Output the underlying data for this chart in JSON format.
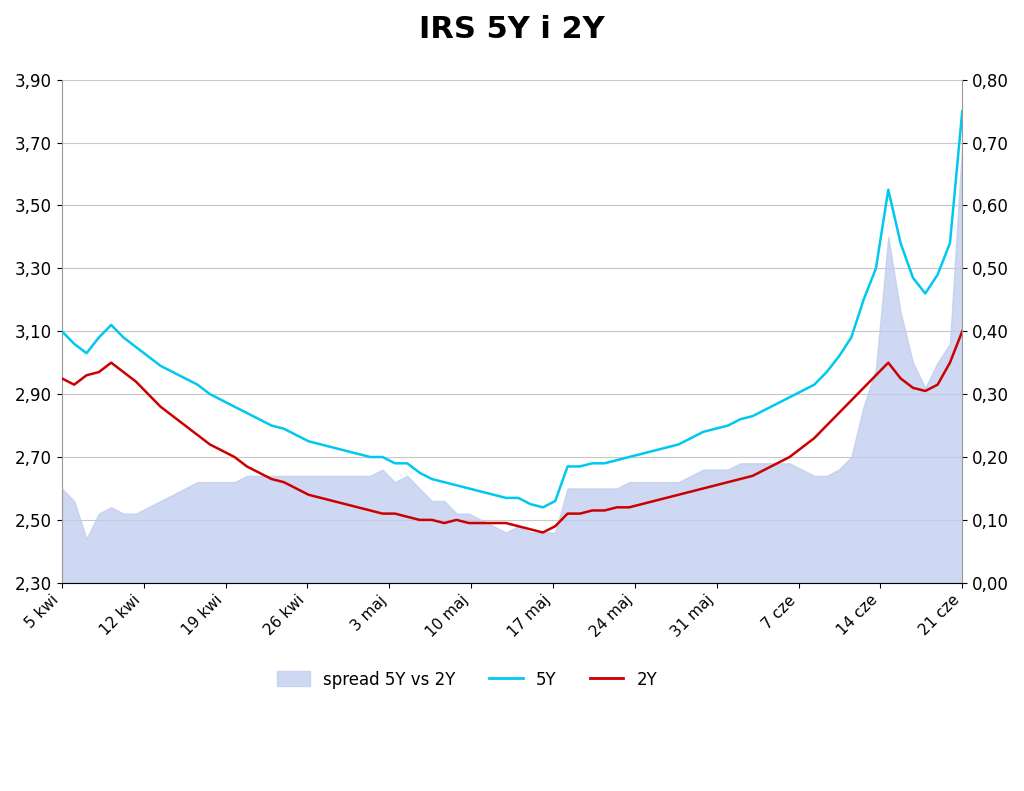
{
  "title": "IRS 5Y i 2Y",
  "x_labels": [
    "5 kwi",
    "12 kwi",
    "19 kwi",
    "26 kwi",
    "3 maj",
    "10 maj",
    "17 maj",
    "24 maj",
    "31 maj",
    "7 cze",
    "14 cze",
    "21 cze"
  ],
  "ylim_left": [
    2.3,
    3.9
  ],
  "ylim_right": [
    0.0,
    0.8
  ],
  "y_ticks_left": [
    2.3,
    2.5,
    2.7,
    2.9,
    3.1,
    3.3,
    3.5,
    3.7,
    3.9
  ],
  "y_ticks_right": [
    0.0,
    0.1,
    0.2,
    0.3,
    0.4,
    0.5,
    0.6,
    0.7,
    0.8
  ],
  "line_5Y_color": "#00C8F0",
  "line_2Y_color": "#CC0000",
  "spread_color": "#C0CCEE",
  "spread_alpha": 0.75,
  "background_color": "#FFFFFF",
  "grid_color": "#C8C8C8",
  "title_fontsize": 22,
  "title_fontweight": "bold",
  "y_5Y": [
    3.1,
    3.06,
    3.03,
    3.08,
    3.12,
    3.08,
    3.05,
    3.02,
    2.99,
    2.97,
    2.95,
    2.93,
    2.9,
    2.88,
    2.86,
    2.84,
    2.82,
    2.8,
    2.79,
    2.77,
    2.75,
    2.74,
    2.73,
    2.72,
    2.71,
    2.7,
    2.7,
    2.68,
    2.68,
    2.65,
    2.63,
    2.62,
    2.61,
    2.6,
    2.59,
    2.58,
    2.57,
    2.57,
    2.55,
    2.54,
    2.56,
    2.67,
    2.67,
    2.68,
    2.68,
    2.69,
    2.7,
    2.71,
    2.72,
    2.73,
    2.74,
    2.76,
    2.78,
    2.79,
    2.8,
    2.82,
    2.83,
    2.85,
    2.87,
    2.89,
    2.91,
    2.93,
    2.97,
    3.02,
    3.08,
    3.2,
    3.3,
    3.55,
    3.38,
    3.27,
    3.22,
    3.28,
    3.38,
    3.8
  ],
  "y_2Y": [
    2.95,
    2.93,
    2.96,
    2.97,
    3.0,
    2.97,
    2.94,
    2.9,
    2.86,
    2.83,
    2.8,
    2.77,
    2.74,
    2.72,
    2.7,
    2.67,
    2.65,
    2.63,
    2.62,
    2.6,
    2.58,
    2.57,
    2.56,
    2.55,
    2.54,
    2.53,
    2.52,
    2.52,
    2.51,
    2.5,
    2.5,
    2.49,
    2.5,
    2.49,
    2.49,
    2.49,
    2.49,
    2.48,
    2.47,
    2.46,
    2.48,
    2.52,
    2.52,
    2.53,
    2.53,
    2.54,
    2.54,
    2.55,
    2.56,
    2.57,
    2.58,
    2.59,
    2.6,
    2.61,
    2.62,
    2.63,
    2.64,
    2.66,
    2.68,
    2.7,
    2.73,
    2.76,
    2.8,
    2.84,
    2.88,
    2.92,
    2.96,
    3.0,
    2.95,
    2.92,
    2.91,
    2.93,
    3.0,
    3.1
  ],
  "legend_labels": [
    "spread 5Y vs 2Y",
    "5Y",
    "2Y"
  ]
}
